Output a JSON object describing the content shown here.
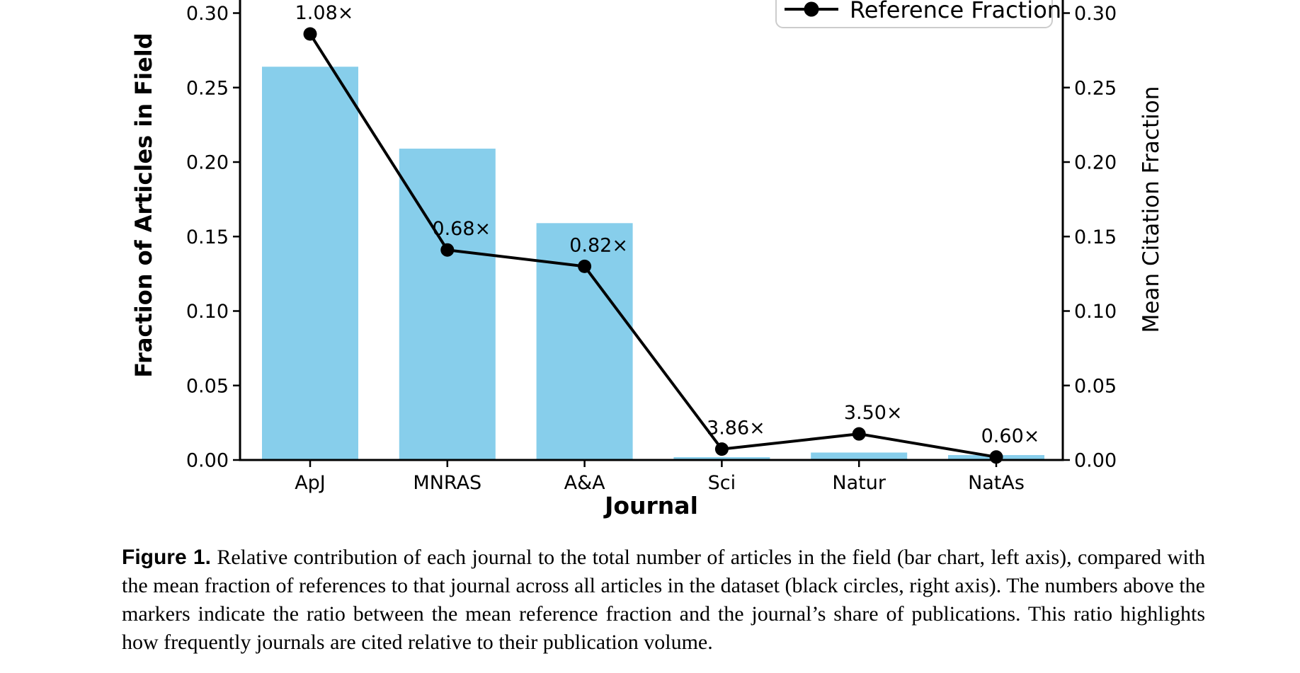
{
  "figure": {
    "caption": {
      "label": "Figure 1.",
      "text": "Relative contribution of each journal to the total number of articles in the field (bar chart, left axis), compared with the mean fraction of references to that journal across all articles in the dataset (black circles, right axis). The numbers above the markers indicate the ratio between the mean reference fraction and the journal’s share of publications. This ratio highlights how frequently journals are cited relative to their publication volume."
    }
  },
  "chart_data": {
    "type": "bar",
    "subtype": "bar+line dual axis",
    "categories": [
      "ApJ",
      "MNRAS",
      "A&A",
      "Sci",
      "Natur",
      "NatAs"
    ],
    "series": [
      {
        "name": "Fraction of Articles in Field",
        "type": "bar",
        "axis": "left",
        "color": "#87CEEB",
        "values": [
          0.264,
          0.209,
          0.159,
          0.0019,
          0.005,
          0.0033
        ]
      },
      {
        "name": "Reference Fraction",
        "type": "line",
        "axis": "right",
        "color": "#000000",
        "marker": "circle",
        "values": [
          0.286,
          0.141,
          0.13,
          0.0073,
          0.0175,
          0.002
        ]
      }
    ],
    "annotations": [
      "1.08×",
      "0.68×",
      "0.82×",
      "3.86×",
      "3.50×",
      "0.60×"
    ],
    "annotation_meaning": "ratio of mean reference fraction to journal share of publications",
    "xlabel": "Journal",
    "ylabel_left": "Fraction of Articles in Field",
    "ylabel_right": "Mean Citation Fraction",
    "yticks": [
      "0.00",
      "0.05",
      "0.10",
      "0.15",
      "0.20",
      "0.25",
      "0.30"
    ],
    "ytick_values": [
      0,
      0.05,
      0.1,
      0.15,
      0.2,
      0.25,
      0.3
    ],
    "ylim": [
      0,
      0.315
    ],
    "grid": false,
    "legend": {
      "position": "upper right",
      "entries": [
        "Reference Fraction"
      ]
    }
  }
}
